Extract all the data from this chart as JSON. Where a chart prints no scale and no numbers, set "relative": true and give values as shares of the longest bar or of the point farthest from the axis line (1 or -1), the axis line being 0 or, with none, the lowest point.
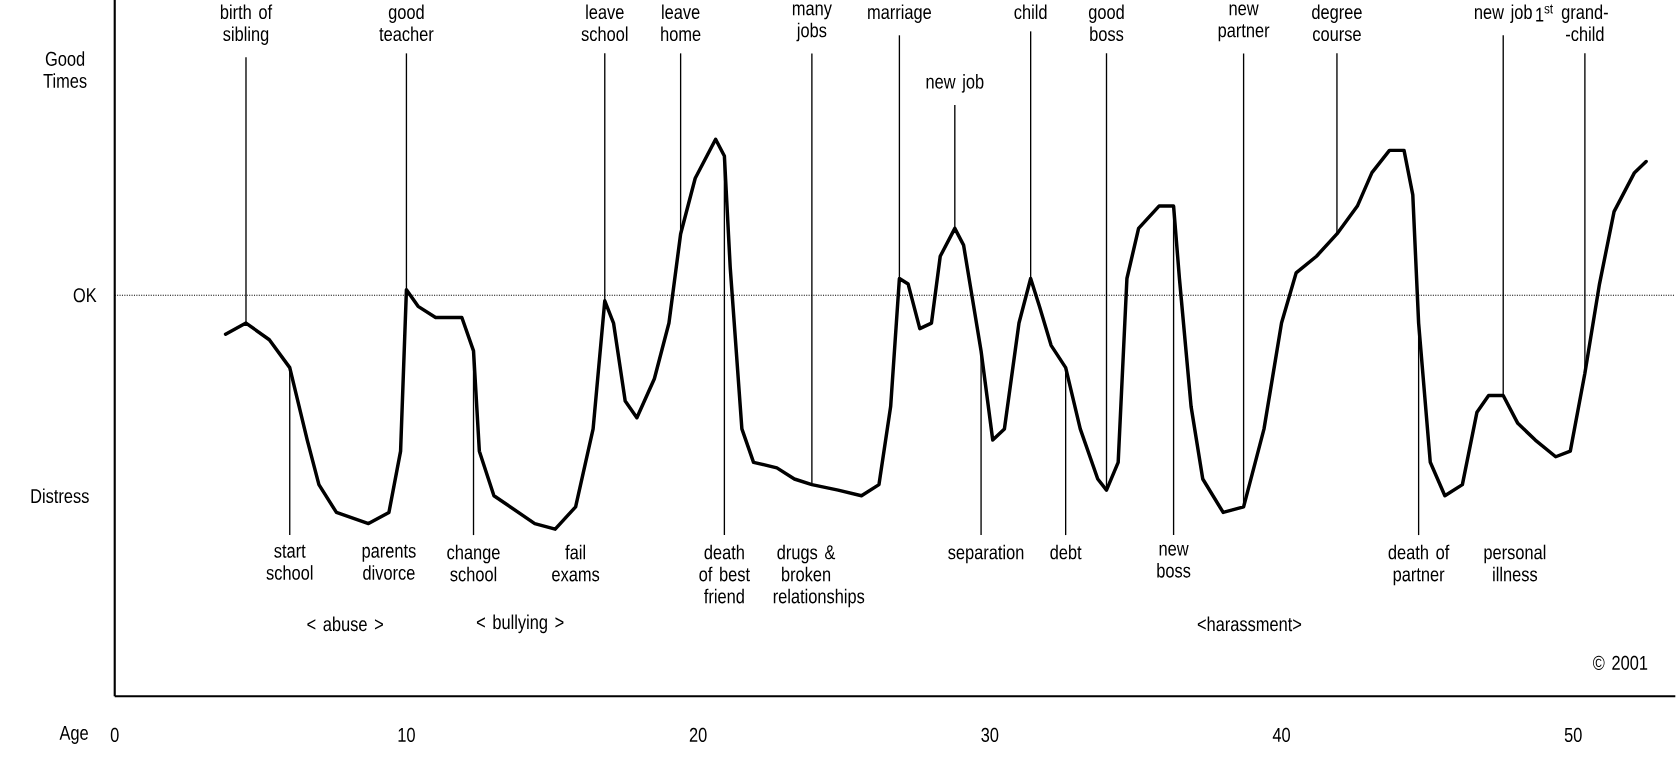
{
  "chart_data": {
    "type": "line",
    "relative": true,
    "color": "#000000",
    "xlabel": "Age",
    "xlim": [
      0,
      53.5
    ],
    "xticks": [
      0,
      10,
      20,
      30,
      40,
      50
    ],
    "x": [
      3.8,
      4.5,
      5.3,
      6.0,
      6.6,
      7.0,
      7.6,
      8.7,
      9.4,
      9.8,
      10.0,
      10.4,
      11.0,
      11.9,
      12.3,
      12.5,
      13.0,
      14.4,
      15.1,
      15.8,
      16.4,
      16.8,
      17.1,
      17.5,
      17.9,
      18.5,
      19.0,
      19.4,
      19.9,
      20.6,
      20.9,
      21.1,
      21.5,
      21.9,
      22.7,
      23.3,
      23.9,
      24.8,
      25.6,
      26.2,
      26.6,
      26.9,
      27.2,
      27.6,
      28.0,
      28.3,
      28.8,
      29.1,
      29.7,
      30.1,
      30.5,
      31.0,
      31.4,
      31.7,
      32.1,
      32.6,
      33.1,
      33.7,
      34.0,
      34.4,
      34.7,
      35.1,
      35.8,
      36.3,
      36.5,
      36.9,
      37.3,
      38.0,
      38.7,
      39.4,
      40.0,
      40.5,
      41.2,
      41.9,
      42.6,
      43.1,
      43.7,
      44.2,
      44.5,
      44.7,
      45.1,
      45.6,
      46.2,
      46.7,
      47.1,
      47.6,
      48.1,
      48.7,
      49.4,
      49.9,
      50.4,
      50.9,
      51.4,
      52.1,
      52.5
    ],
    "values": [
      0.65,
      0.67,
      0.64,
      0.59,
      0.46,
      0.38,
      0.33,
      0.31,
      0.33,
      0.44,
      0.73,
      0.7,
      0.68,
      0.68,
      0.62,
      0.44,
      0.36,
      0.31,
      0.3,
      0.34,
      0.48,
      0.71,
      0.67,
      0.53,
      0.5,
      0.57,
      0.67,
      0.83,
      0.93,
      1,
      0.97,
      0.77,
      0.48,
      0.42,
      0.41,
      0.39,
      0.38,
      0.37,
      0.36,
      0.38,
      0.52,
      0.75,
      0.74,
      0.66,
      0.67,
      0.79,
      0.84,
      0.81,
      0.62,
      0.46,
      0.48,
      0.67,
      0.75,
      0.7,
      0.63,
      0.59,
      0.48,
      0.39,
      0.37,
      0.42,
      0.75,
      0.84,
      0.88,
      0.88,
      0.75,
      0.52,
      0.39,
      0.33,
      0.34,
      0.48,
      0.67,
      0.76,
      0.79,
      0.83,
      0.88,
      0.94,
      0.98,
      0.98,
      0.9,
      0.67,
      0.42,
      0.36,
      0.38,
      0.51,
      0.54,
      0.54,
      0.49,
      0.46,
      0.43,
      0.44,
      0.58,
      0.74,
      0.87,
      0.94,
      0.96
    ],
    "ref_lines": [
      {
        "axis": "y",
        "value": 0.72,
        "label": "OK",
        "line_style": "dotted"
      }
    ],
    "annotations": [
      "Good Times",
      "Distress",
      "© 2001",
      "parents divorce",
      "fail exams",
      "drugs & broken relationships",
      "personal illness",
      "< abuse >",
      "< bullying >",
      "<harassment>",
      {
        "text": "birth of sibling",
        "x": 4.5,
        "y": 0.67
      },
      {
        "text": "good teacher",
        "x": 10.0,
        "y": 0.73
      },
      {
        "text": "leave school",
        "x": 16.8,
        "y": 0.71
      },
      {
        "text": "leave home",
        "x": 19.4,
        "y": 0.83
      },
      {
        "text": "many jobs",
        "x": 23.9,
        "y": 0.38
      },
      {
        "text": "marriage",
        "x": 26.9,
        "y": 0.75
      },
      {
        "text": "child",
        "x": 31.4,
        "y": 0.75
      },
      {
        "text": "good boss",
        "x": 34.0,
        "y": 0.37
      },
      {
        "text": "new partner",
        "x": 38.7,
        "y": 0.34
      },
      {
        "text": "degree course",
        "x": 41.9,
        "y": 0.83
      },
      {
        "text": "new job",
        "x": 47.6,
        "y": 0.54
      },
      {
        "text": "grand- -child",
        "x": 50.4,
        "y": 0.58
      },
      "\\text{1}^{\\text{st}}",
      {
        "text": "new job",
        "x": 28.8,
        "y": 0.84
      },
      {
        "text": "start school",
        "x": 6.0,
        "y": 0.59
      },
      {
        "text": "change school",
        "x": 12.3,
        "y": 0.62
      },
      {
        "text": "death of best friend",
        "x": 20.9,
        "y": 0.97
      },
      {
        "text": "separation",
        "x": 29.7,
        "y": 0.62
      },
      {
        "text": "debt",
        "x": 32.6,
        "y": 0.59
      },
      {
        "text": "new boss",
        "x": 36.3,
        "y": 0.88
      },
      {
        "text": "death of partner",
        "x": 44.7,
        "y": 0.67
      }
    ]
  }
}
